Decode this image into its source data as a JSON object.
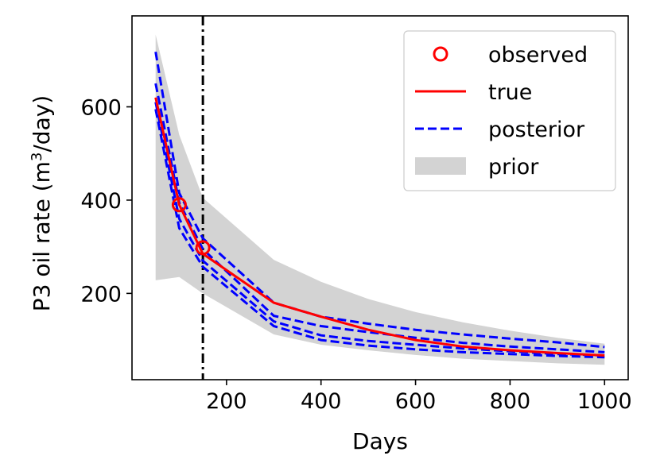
{
  "chart_data": {
    "type": "line",
    "xlabel": "Days",
    "ylabel_main": "P3 oil rate (m",
    "ylabel_sup": "3",
    "ylabel_tail": "/day)",
    "xlim": [
      0,
      1050
    ],
    "ylim": [
      15,
      795
    ],
    "xticks": [
      200,
      400,
      600,
      800,
      1000
    ],
    "yticks": [
      200,
      400,
      600
    ],
    "vline_x": 150,
    "grid": false,
    "legend_position": "top-right",
    "legend": [
      "observed",
      "true",
      "posterior",
      "prior"
    ],
    "colors": {
      "observed": "#ff0000",
      "true": "#ff0000",
      "posterior": "#0000ff",
      "prior": "#d3d3d3",
      "vline": "#000000"
    },
    "series": [
      {
        "name": "observed",
        "kind": "markers",
        "x": [
          100,
          150
        ],
        "y": [
          390,
          298
        ]
      },
      {
        "name": "true",
        "kind": "line",
        "x": [
          50,
          100,
          150,
          300,
          400,
          500,
          600,
          700,
          800,
          900,
          1000
        ],
        "y": [
          620,
          390,
          285,
          180,
          150,
          122,
          100,
          86,
          78,
          72,
          67
        ]
      },
      {
        "name": "posterior",
        "kind": "dashed-lines",
        "lines": [
          {
            "x": [
              50,
              100,
              150,
              300,
              400,
              500,
              600,
              700,
              800,
              900,
              1000
            ],
            "y": [
              718,
              415,
              318,
              180,
              150,
              135,
              122,
              112,
              103,
              95,
              85
            ]
          },
          {
            "x": [
              50,
              100,
              150,
              300,
              400,
              500,
              600,
              700,
              800,
              900,
              1000
            ],
            "y": [
              650,
              395,
              295,
              152,
              130,
              117,
              105,
              94,
              86,
              80,
              74
            ]
          },
          {
            "x": [
              50,
              100,
              150,
              300,
              400,
              500,
              600,
              700,
              800,
              900,
              1000
            ],
            "y": [
              610,
              360,
              270,
              140,
              110,
              98,
              90,
              82,
              76,
              70,
              67
            ]
          },
          {
            "x": [
              50,
              100,
              150,
              300,
              400,
              500,
              600,
              700,
              800,
              900,
              1000
            ],
            "y": [
              595,
              340,
              257,
              130,
              100,
              88,
              80,
              74,
              70,
              66,
              63
            ]
          }
        ]
      },
      {
        "name": "prior",
        "kind": "band",
        "x": [
          50,
          100,
          150,
          300,
          400,
          500,
          600,
          700,
          800,
          900,
          1000
        ],
        "upper": [
          755,
          540,
          405,
          272,
          225,
          188,
          160,
          138,
          120,
          105,
          92
        ],
        "lower": [
          228,
          235,
          200,
          112,
          90,
          78,
          68,
          60,
          55,
          50,
          47
        ]
      }
    ]
  }
}
